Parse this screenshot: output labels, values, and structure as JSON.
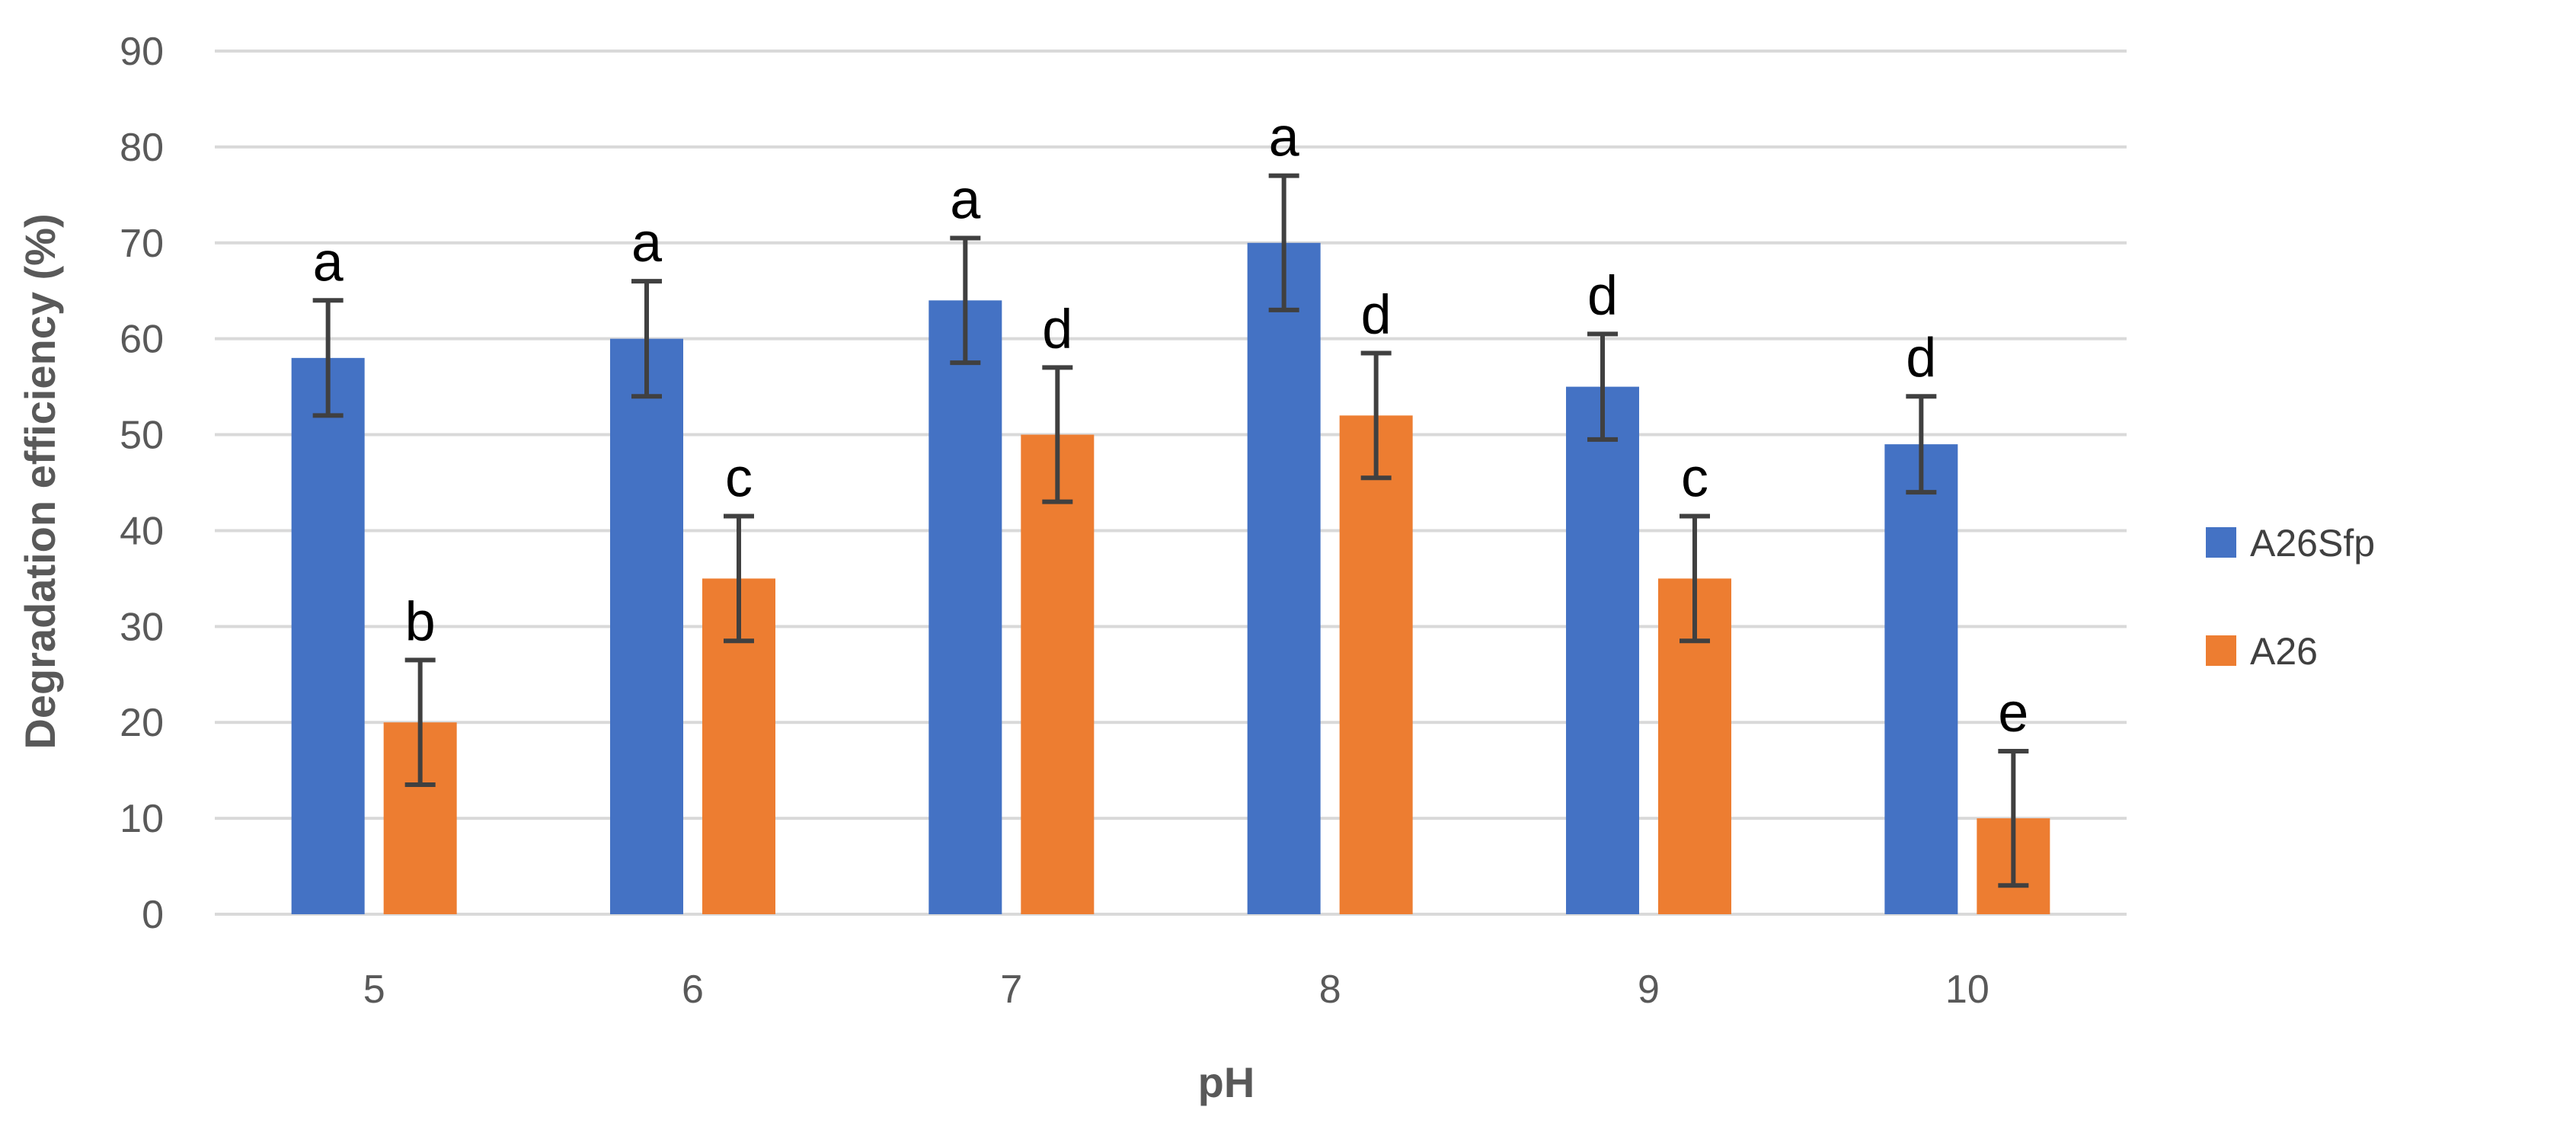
{
  "chart_data": {
    "type": "bar",
    "title": "",
    "xlabel": "pH",
    "ylabel": "Degradation efficiency (%)",
    "ylim": [
      0,
      90
    ],
    "yticks": [
      0,
      10,
      20,
      30,
      40,
      50,
      60,
      70,
      80,
      90
    ],
    "grid": true,
    "legend_position": "right",
    "categories": [
      "5",
      "6",
      "7",
      "8",
      "9",
      "10"
    ],
    "series": [
      {
        "name": "A26Sfp",
        "color": "#4472C4",
        "values": [
          58,
          60,
          64,
          70,
          55,
          49
        ],
        "error": [
          6,
          6,
          6.5,
          7,
          5.5,
          5
        ],
        "labels": [
          "a",
          "a",
          "a",
          "a",
          "d",
          "d"
        ]
      },
      {
        "name": "A26",
        "color": "#ED7D31",
        "values": [
          20,
          35,
          50,
          52,
          35,
          10
        ],
        "error": [
          6.5,
          6.5,
          7,
          6.5,
          6.5,
          7
        ],
        "labels": [
          "b",
          "c",
          "d",
          "d",
          "c",
          "e"
        ]
      }
    ]
  }
}
